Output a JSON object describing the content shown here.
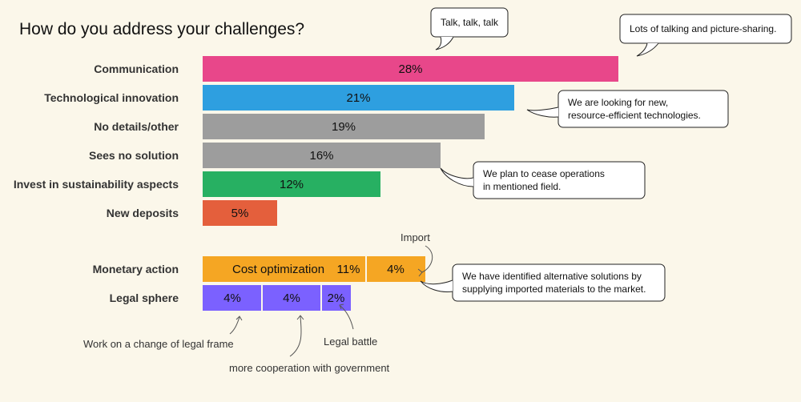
{
  "title": "How do you address your challenges?",
  "chart_data": {
    "type": "bar",
    "orientation": "horizontal",
    "stacked": true,
    "xlim": [
      0,
      100
    ],
    "grid": false,
    "categories": [
      "Communication",
      "Technological innovation",
      "No details/other",
      "Sees no solution",
      "Invest in sustainability aspects",
      "New deposits",
      "Monetary action",
      "Legal sphere"
    ],
    "bars": [
      {
        "category": "Communication",
        "segments": [
          {
            "value": 28,
            "label": "28%",
            "color": "#e8478a"
          }
        ]
      },
      {
        "category": "Technological innovation",
        "segments": [
          {
            "value": 21,
            "label": "21%",
            "color": "#2e9fe0"
          }
        ]
      },
      {
        "category": "No details/other",
        "segments": [
          {
            "value": 19,
            "label": "19%",
            "color": "#9d9d9d"
          }
        ]
      },
      {
        "category": "Sees no solution",
        "segments": [
          {
            "value": 16,
            "label": "16%",
            "color": "#9d9d9d"
          }
        ]
      },
      {
        "category": "Invest in sustainability aspects",
        "segments": [
          {
            "value": 12,
            "label": "12%",
            "color": "#27b062"
          }
        ]
      },
      {
        "category": "New deposits",
        "segments": [
          {
            "value": 5,
            "label": "5%",
            "color": "#e45f3c"
          }
        ]
      },
      {
        "category": "Monetary action",
        "segments": [
          {
            "value": 11,
            "label": "11%",
            "inner_label": "Cost optimization",
            "color": "#f5a623"
          },
          {
            "value": 4,
            "label": "4%",
            "color": "#f5a623"
          }
        ]
      },
      {
        "category": "Legal sphere",
        "segments": [
          {
            "value": 4,
            "label": "4%",
            "color": "#7b61ff"
          },
          {
            "value": 4,
            "label": "4%",
            "color": "#7b61ff"
          },
          {
            "value": 2,
            "label": "2%",
            "color": "#7b61ff"
          }
        ]
      }
    ],
    "annotations": [
      "Import",
      "Work on a change of legal frame",
      "more cooperation with government",
      "Legal battle"
    ],
    "callouts": [
      {
        "lines": [
          "Talk, talk, talk"
        ]
      },
      {
        "lines": [
          "Lots of talking and picture-sharing."
        ]
      },
      {
        "lines": [
          "We are looking for new,",
          "resource-efficient technologies."
        ]
      },
      {
        "lines": [
          "We plan to cease operations",
          "in mentioned field."
        ]
      },
      {
        "lines": [
          "We have identified alternative solutions by",
          "supplying imported materials to the market."
        ]
      }
    ]
  }
}
